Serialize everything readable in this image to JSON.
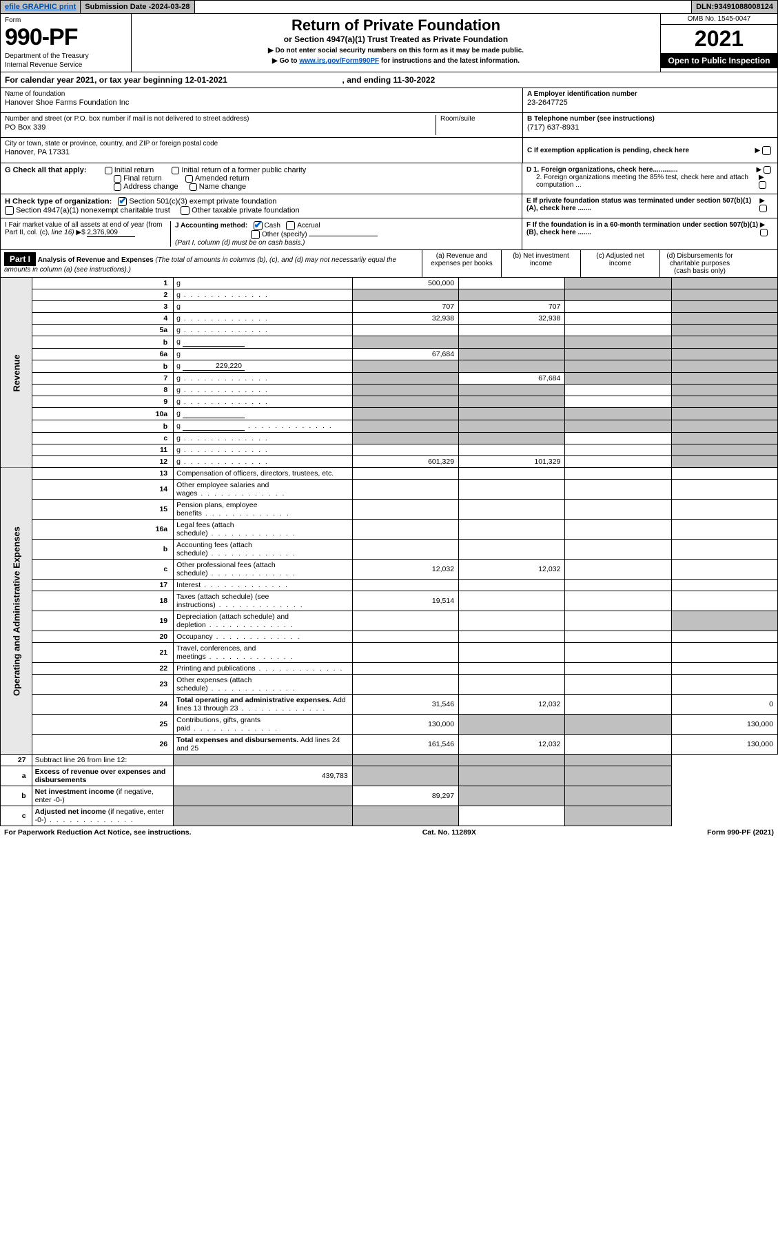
{
  "topbar": {
    "efile": "efile GRAPHIC print",
    "submission_label": "Submission Date - ",
    "submission_date": "2024-03-28",
    "dln_label": "DLN: ",
    "dln": "93491088008124"
  },
  "formhead": {
    "form_word": "Form",
    "form_number": "990-PF",
    "dept1": "Department of the Treasury",
    "dept2": "Internal Revenue Service",
    "title": "Return of Private Foundation",
    "subtitle": "or Section 4947(a)(1) Trust Treated as Private Foundation",
    "note1": "▶ Do not enter social security numbers on this form as it may be made public.",
    "note2_pre": "▶ Go to ",
    "note2_link": "www.irs.gov/Form990PF",
    "note2_post": " for instructions and the latest information.",
    "omb": "OMB No. 1545-0047",
    "year": "2021",
    "open_public": "Open to Public Inspection"
  },
  "calyear": {
    "pre": "For calendar year 2021, or tax year beginning ",
    "begin": "12-01-2021",
    "mid": " , and ending ",
    "end": "11-30-2022"
  },
  "id": {
    "name_label": "Name of foundation",
    "name": "Hanover Shoe Farms Foundation Inc",
    "addr_label": "Number and street (or P.O. box number if mail is not delivered to street address)",
    "addr": "PO Box 339",
    "room_label": "Room/suite",
    "city_label": "City or town, state or province, country, and ZIP or foreign postal code",
    "city": "Hanover, PA  17331",
    "a_label": "A Employer identification number",
    "a_val": "23-2647725",
    "b_label": "B Telephone number (see instructions)",
    "b_val": "(717) 637-8931",
    "c_label": "C If exemption application is pending, check here"
  },
  "g": {
    "label": "G Check all that apply:",
    "opts": [
      "Initial return",
      "Initial return of a former public charity",
      "Final return",
      "Amended return",
      "Address change",
      "Name change"
    ]
  },
  "h": {
    "label": "H Check type of organization:",
    "opt1": "Section 501(c)(3) exempt private foundation",
    "opt2": "Section 4947(a)(1) nonexempt charitable trust",
    "opt3": "Other taxable private foundation"
  },
  "d": {
    "d1": "D 1. Foreign organizations, check here.............",
    "d2": "2. Foreign organizations meeting the 85% test, check here and attach computation ...",
    "e": "E  If private foundation status was terminated under section 507(b)(1)(A), check here .......",
    "f": "F  If the foundation is in a 60-month termination under section 507(b)(1)(B), check here ......."
  },
  "i": {
    "label_pre": "I Fair market value of all assets at end of year (from Part II, col. (c), ",
    "line16": "line 16)",
    "val": "2,376,909"
  },
  "j": {
    "label": "J Accounting method:",
    "cash": "Cash",
    "accrual": "Accrual",
    "other": "Other (specify)",
    "note": "(Part I, column (d) must be on cash basis.)"
  },
  "part1": {
    "badge": "Part I",
    "title": "Analysis of Revenue and Expenses",
    "title_note": " (The total of amounts in columns (b), (c), and (d) may not necessarily equal the amounts in column (a) (see instructions).)",
    "col_a": "(a)   Revenue and expenses per books",
    "col_b": "(b)   Net investment income",
    "col_c": "(c)   Adjusted net income",
    "col_d": "(d)   Disbursements for charitable purposes (cash basis only)"
  },
  "side_labels": {
    "revenue": "Revenue",
    "expenses": "Operating and Administrative Expenses"
  },
  "rows": [
    {
      "n": "1",
      "d": "g",
      "a": "500,000",
      "b": "",
      "c": "g"
    },
    {
      "n": "2",
      "d": "g",
      "a": "g",
      "b": "g",
      "c": "g",
      "dots": true
    },
    {
      "n": "3",
      "d": "g",
      "a": "707",
      "b": "707",
      "c": ""
    },
    {
      "n": "4",
      "d": "g",
      "a": "32,938",
      "b": "32,938",
      "c": "",
      "dots": true
    },
    {
      "n": "5a",
      "d": "g",
      "a": "",
      "b": "",
      "c": "",
      "dots": true
    },
    {
      "n": "b",
      "d": "g",
      "a": "g",
      "b": "g",
      "c": "g",
      "inline_line": true
    },
    {
      "n": "6a",
      "d": "g",
      "a": "67,684",
      "b": "g",
      "c": "g"
    },
    {
      "n": "b",
      "d": "g",
      "a": "g",
      "b": "g",
      "c": "g",
      "inline_val": "229,220"
    },
    {
      "n": "7",
      "d": "g",
      "a": "g",
      "b": "67,684",
      "c": "g",
      "dots": true
    },
    {
      "n": "8",
      "d": "g",
      "a": "g",
      "b": "g",
      "c": "",
      "dots": true
    },
    {
      "n": "9",
      "d": "g",
      "a": "g",
      "b": "g",
      "c": "",
      "dots": true
    },
    {
      "n": "10a",
      "d": "g",
      "a": "g",
      "b": "g",
      "c": "g",
      "inline_line": true
    },
    {
      "n": "b",
      "d": "g",
      "a": "g",
      "b": "g",
      "c": "g",
      "inline_line": true,
      "dots": true
    },
    {
      "n": "c",
      "d": "g",
      "a": "g",
      "b": "g",
      "c": "",
      "dots": true
    },
    {
      "n": "11",
      "d": "g",
      "a": "",
      "b": "",
      "c": "",
      "dots": true
    },
    {
      "n": "12",
      "d": "g",
      "a": "601,329",
      "b": "101,329",
      "c": "",
      "dots": true
    }
  ],
  "exp_rows": [
    {
      "n": "13",
      "d": "Compensation of officers, directors, trustees, etc.",
      "a": "",
      "b": "",
      "c": "",
      "dd": ""
    },
    {
      "n": "14",
      "d": "Other employee salaries and wages",
      "a": "",
      "b": "",
      "c": "",
      "dd": "",
      "dots": true
    },
    {
      "n": "15",
      "d": "Pension plans, employee benefits",
      "a": "",
      "b": "",
      "c": "",
      "dd": "",
      "dots": true
    },
    {
      "n": "16a",
      "d": "Legal fees (attach schedule)",
      "a": "",
      "b": "",
      "c": "",
      "dd": "",
      "dots": true
    },
    {
      "n": "b",
      "d": "Accounting fees (attach schedule)",
      "a": "",
      "b": "",
      "c": "",
      "dd": "",
      "dots": true
    },
    {
      "n": "c",
      "d": "Other professional fees (attach schedule)",
      "a": "12,032",
      "b": "12,032",
      "c": "",
      "dd": "",
      "dots": true
    },
    {
      "n": "17",
      "d": "Interest",
      "a": "",
      "b": "",
      "c": "",
      "dd": "",
      "dots": true
    },
    {
      "n": "18",
      "d": "Taxes (attach schedule) (see instructions)",
      "a": "19,514",
      "b": "",
      "c": "",
      "dd": "",
      "dots": true
    },
    {
      "n": "19",
      "d": "Depreciation (attach schedule) and depletion",
      "a": "",
      "b": "",
      "c": "",
      "dd": "g",
      "dots": true
    },
    {
      "n": "20",
      "d": "Occupancy",
      "a": "",
      "b": "",
      "c": "",
      "dd": "",
      "dots": true
    },
    {
      "n": "21",
      "d": "Travel, conferences, and meetings",
      "a": "",
      "b": "",
      "c": "",
      "dd": "",
      "dots": true
    },
    {
      "n": "22",
      "d": "Printing and publications",
      "a": "",
      "b": "",
      "c": "",
      "dd": "",
      "dots": true
    },
    {
      "n": "23",
      "d": "Other expenses (attach schedule)",
      "a": "",
      "b": "",
      "c": "",
      "dd": "",
      "dots": true
    },
    {
      "n": "24",
      "d": "<b>Total operating and administrative expenses.</b> Add lines 13 through 23",
      "a": "31,546",
      "b": "12,032",
      "c": "",
      "dd": "0",
      "dots": true
    },
    {
      "n": "25",
      "d": "Contributions, gifts, grants paid",
      "a": "130,000",
      "b": "g",
      "c": "g",
      "dd": "130,000",
      "dots": true
    },
    {
      "n": "26",
      "d": "<b>Total expenses and disbursements.</b> Add lines 24 and 25",
      "a": "161,546",
      "b": "12,032",
      "c": "",
      "dd": "130,000"
    }
  ],
  "bottom_rows": [
    {
      "n": "27",
      "d": "Subtract line 26 from line 12:",
      "a": "g",
      "b": "g",
      "c": "g",
      "dd": "g"
    },
    {
      "n": "a",
      "d": "<b>Excess of revenue over expenses and disbursements</b>",
      "a": "439,783",
      "b": "g",
      "c": "g",
      "dd": "g"
    },
    {
      "n": "b",
      "d": "<b>Net investment income</b> (if negative, enter -0-)",
      "a": "g",
      "b": "89,297",
      "c": "g",
      "dd": "g"
    },
    {
      "n": "c",
      "d": "<b>Adjusted net income</b> (if negative, enter -0-)",
      "a": "g",
      "b": "g",
      "c": "",
      "dd": "g",
      "dots": true
    }
  ],
  "footer": {
    "left": "For Paperwork Reduction Act Notice, see instructions.",
    "mid": "Cat. No. 11289X",
    "right": "Form 990-PF (2021)"
  }
}
